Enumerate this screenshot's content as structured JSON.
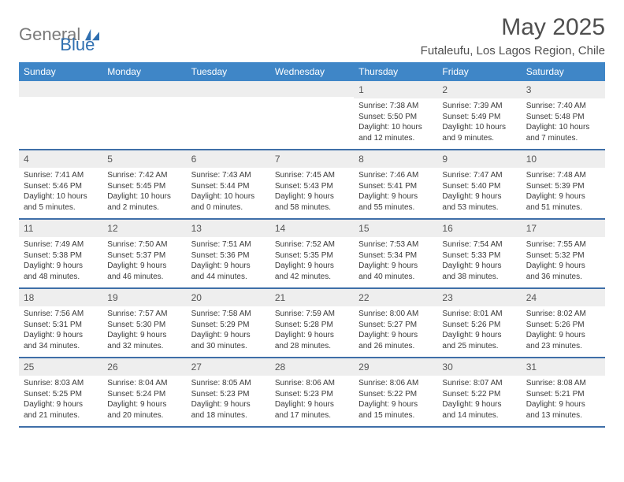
{
  "brand": {
    "general": "General",
    "blue": "Blue"
  },
  "title": {
    "month": "May 2025",
    "location": "Futaleufu, Los Lagos Region, Chile"
  },
  "colors": {
    "header_bg": "#3f86c7",
    "header_text": "#ffffff",
    "daynum_bg": "#eeeeee",
    "rule": "#3f6fa8",
    "logo_gray": "#7a7a7a",
    "logo_blue": "#2f6fb0",
    "text": "#333333"
  },
  "dow": [
    "Sunday",
    "Monday",
    "Tuesday",
    "Wednesday",
    "Thursday",
    "Friday",
    "Saturday"
  ],
  "weeks": [
    [
      {
        "n": "",
        "sr": "",
        "ss": "",
        "d1": "",
        "d2": ""
      },
      {
        "n": "",
        "sr": "",
        "ss": "",
        "d1": "",
        "d2": ""
      },
      {
        "n": "",
        "sr": "",
        "ss": "",
        "d1": "",
        "d2": ""
      },
      {
        "n": "",
        "sr": "",
        "ss": "",
        "d1": "",
        "d2": ""
      },
      {
        "n": "1",
        "sr": "Sunrise: 7:38 AM",
        "ss": "Sunset: 5:50 PM",
        "d1": "Daylight: 10 hours",
        "d2": "and 12 minutes."
      },
      {
        "n": "2",
        "sr": "Sunrise: 7:39 AM",
        "ss": "Sunset: 5:49 PM",
        "d1": "Daylight: 10 hours",
        "d2": "and 9 minutes."
      },
      {
        "n": "3",
        "sr": "Sunrise: 7:40 AM",
        "ss": "Sunset: 5:48 PM",
        "d1": "Daylight: 10 hours",
        "d2": "and 7 minutes."
      }
    ],
    [
      {
        "n": "4",
        "sr": "Sunrise: 7:41 AM",
        "ss": "Sunset: 5:46 PM",
        "d1": "Daylight: 10 hours",
        "d2": "and 5 minutes."
      },
      {
        "n": "5",
        "sr": "Sunrise: 7:42 AM",
        "ss": "Sunset: 5:45 PM",
        "d1": "Daylight: 10 hours",
        "d2": "and 2 minutes."
      },
      {
        "n": "6",
        "sr": "Sunrise: 7:43 AM",
        "ss": "Sunset: 5:44 PM",
        "d1": "Daylight: 10 hours",
        "d2": "and 0 minutes."
      },
      {
        "n": "7",
        "sr": "Sunrise: 7:45 AM",
        "ss": "Sunset: 5:43 PM",
        "d1": "Daylight: 9 hours",
        "d2": "and 58 minutes."
      },
      {
        "n": "8",
        "sr": "Sunrise: 7:46 AM",
        "ss": "Sunset: 5:41 PM",
        "d1": "Daylight: 9 hours",
        "d2": "and 55 minutes."
      },
      {
        "n": "9",
        "sr": "Sunrise: 7:47 AM",
        "ss": "Sunset: 5:40 PM",
        "d1": "Daylight: 9 hours",
        "d2": "and 53 minutes."
      },
      {
        "n": "10",
        "sr": "Sunrise: 7:48 AM",
        "ss": "Sunset: 5:39 PM",
        "d1": "Daylight: 9 hours",
        "d2": "and 51 minutes."
      }
    ],
    [
      {
        "n": "11",
        "sr": "Sunrise: 7:49 AM",
        "ss": "Sunset: 5:38 PM",
        "d1": "Daylight: 9 hours",
        "d2": "and 48 minutes."
      },
      {
        "n": "12",
        "sr": "Sunrise: 7:50 AM",
        "ss": "Sunset: 5:37 PM",
        "d1": "Daylight: 9 hours",
        "d2": "and 46 minutes."
      },
      {
        "n": "13",
        "sr": "Sunrise: 7:51 AM",
        "ss": "Sunset: 5:36 PM",
        "d1": "Daylight: 9 hours",
        "d2": "and 44 minutes."
      },
      {
        "n": "14",
        "sr": "Sunrise: 7:52 AM",
        "ss": "Sunset: 5:35 PM",
        "d1": "Daylight: 9 hours",
        "d2": "and 42 minutes."
      },
      {
        "n": "15",
        "sr": "Sunrise: 7:53 AM",
        "ss": "Sunset: 5:34 PM",
        "d1": "Daylight: 9 hours",
        "d2": "and 40 minutes."
      },
      {
        "n": "16",
        "sr": "Sunrise: 7:54 AM",
        "ss": "Sunset: 5:33 PM",
        "d1": "Daylight: 9 hours",
        "d2": "and 38 minutes."
      },
      {
        "n": "17",
        "sr": "Sunrise: 7:55 AM",
        "ss": "Sunset: 5:32 PM",
        "d1": "Daylight: 9 hours",
        "d2": "and 36 minutes."
      }
    ],
    [
      {
        "n": "18",
        "sr": "Sunrise: 7:56 AM",
        "ss": "Sunset: 5:31 PM",
        "d1": "Daylight: 9 hours",
        "d2": "and 34 minutes."
      },
      {
        "n": "19",
        "sr": "Sunrise: 7:57 AM",
        "ss": "Sunset: 5:30 PM",
        "d1": "Daylight: 9 hours",
        "d2": "and 32 minutes."
      },
      {
        "n": "20",
        "sr": "Sunrise: 7:58 AM",
        "ss": "Sunset: 5:29 PM",
        "d1": "Daylight: 9 hours",
        "d2": "and 30 minutes."
      },
      {
        "n": "21",
        "sr": "Sunrise: 7:59 AM",
        "ss": "Sunset: 5:28 PM",
        "d1": "Daylight: 9 hours",
        "d2": "and 28 minutes."
      },
      {
        "n": "22",
        "sr": "Sunrise: 8:00 AM",
        "ss": "Sunset: 5:27 PM",
        "d1": "Daylight: 9 hours",
        "d2": "and 26 minutes."
      },
      {
        "n": "23",
        "sr": "Sunrise: 8:01 AM",
        "ss": "Sunset: 5:26 PM",
        "d1": "Daylight: 9 hours",
        "d2": "and 25 minutes."
      },
      {
        "n": "24",
        "sr": "Sunrise: 8:02 AM",
        "ss": "Sunset: 5:26 PM",
        "d1": "Daylight: 9 hours",
        "d2": "and 23 minutes."
      }
    ],
    [
      {
        "n": "25",
        "sr": "Sunrise: 8:03 AM",
        "ss": "Sunset: 5:25 PM",
        "d1": "Daylight: 9 hours",
        "d2": "and 21 minutes."
      },
      {
        "n": "26",
        "sr": "Sunrise: 8:04 AM",
        "ss": "Sunset: 5:24 PM",
        "d1": "Daylight: 9 hours",
        "d2": "and 20 minutes."
      },
      {
        "n": "27",
        "sr": "Sunrise: 8:05 AM",
        "ss": "Sunset: 5:23 PM",
        "d1": "Daylight: 9 hours",
        "d2": "and 18 minutes."
      },
      {
        "n": "28",
        "sr": "Sunrise: 8:06 AM",
        "ss": "Sunset: 5:23 PM",
        "d1": "Daylight: 9 hours",
        "d2": "and 17 minutes."
      },
      {
        "n": "29",
        "sr": "Sunrise: 8:06 AM",
        "ss": "Sunset: 5:22 PM",
        "d1": "Daylight: 9 hours",
        "d2": "and 15 minutes."
      },
      {
        "n": "30",
        "sr": "Sunrise: 8:07 AM",
        "ss": "Sunset: 5:22 PM",
        "d1": "Daylight: 9 hours",
        "d2": "and 14 minutes."
      },
      {
        "n": "31",
        "sr": "Sunrise: 8:08 AM",
        "ss": "Sunset: 5:21 PM",
        "d1": "Daylight: 9 hours",
        "d2": "and 13 minutes."
      }
    ]
  ]
}
